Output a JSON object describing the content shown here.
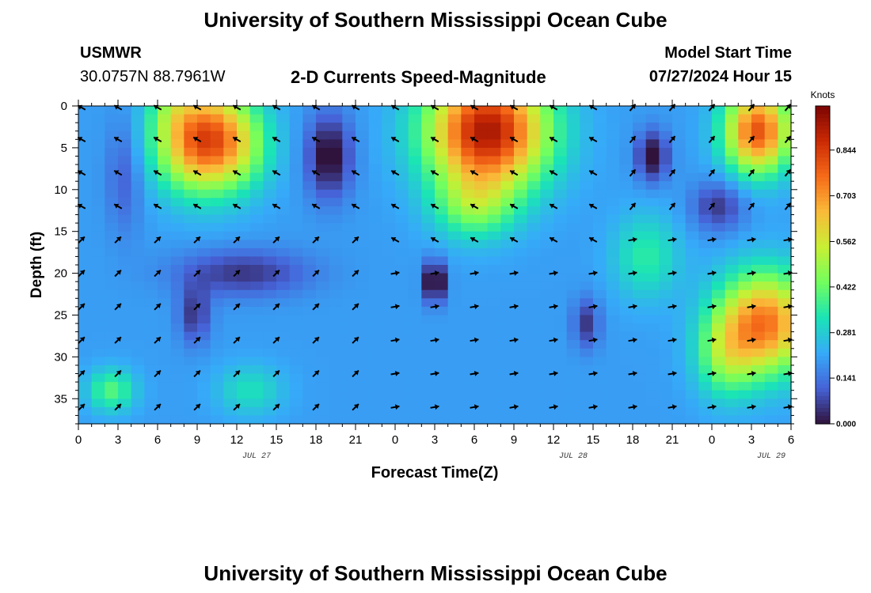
{
  "page": {
    "title": "University of Southern Mississippi Ocean Cube",
    "footer_title": "University of Southern Mississippi Ocean Cube",
    "station_id": "USMWR",
    "station_coords": "30.0757N  88.7961W",
    "chart_heading": "2-D Currents Speed-Magnitude",
    "model_label": "Model Start Time",
    "model_time": "07/27/2024 Hour 15"
  },
  "chart_data": {
    "type": "heatmap",
    "title": "2-D Currents Speed-Magnitude",
    "xlabel": "Forecast Time(Z)",
    "ylabel": "Depth (ft)",
    "x_ticks": [
      "0",
      "3",
      "6",
      "9",
      "12",
      "15",
      "18",
      "21",
      "0",
      "3",
      "6",
      "9",
      "12",
      "15",
      "18",
      "21",
      "0",
      "3",
      "6"
    ],
    "date_labels": [
      {
        "text": "JUL 27",
        "tick_index": 4.5
      },
      {
        "text": "JUL 28",
        "tick_index": 12.5
      },
      {
        "text": "JUL 29",
        "tick_index": 17.5
      }
    ],
    "y_ticks": [
      0,
      5,
      10,
      15,
      20,
      25,
      30,
      35
    ],
    "ylim": [
      0,
      38
    ],
    "xlim_hours": [
      0,
      54
    ],
    "colorbar": {
      "unit": "Knots",
      "ticks": [
        0.0,
        0.141,
        0.281,
        0.422,
        0.562,
        0.703,
        0.844
      ],
      "tick_labels": [
        "0.000",
        "0.141",
        "0.281",
        "0.422",
        "0.562",
        "0.703",
        "0.844"
      ],
      "range": [
        0,
        0.98
      ],
      "colormap": [
        "#30123b",
        "#4662d7",
        "#36aaf9",
        "#1ae4b6",
        "#72fe5e",
        "#c8ef34",
        "#faba39",
        "#f66b19",
        "#cb2a04",
        "#7a0403"
      ]
    },
    "speed_features": [
      {
        "hour": 9.5,
        "depth": 4,
        "sx": 3.5,
        "sy": 6,
        "value": 0.62
      },
      {
        "hour": 12.5,
        "depth": 5,
        "sx": 2.5,
        "sy": 5,
        "value": 0.1
      },
      {
        "hour": 7,
        "depth": 0,
        "sx": 1.5,
        "sy": 3,
        "value": 0.08
      },
      {
        "hour": 19,
        "depth": 6,
        "sx": 1.7,
        "sy": 5,
        "value": -0.22
      },
      {
        "hour": 3.5,
        "depth": 8,
        "sx": 1.4,
        "sy": 7,
        "value": -0.1
      },
      {
        "hour": 31,
        "depth": 3,
        "sx": 4.5,
        "sy": 7,
        "value": 0.72
      },
      {
        "hour": 30,
        "depth": 12,
        "sx": 3,
        "sy": 4,
        "value": 0.2
      },
      {
        "hour": 51.5,
        "depth": 3,
        "sx": 2.5,
        "sy": 5,
        "value": 0.6
      },
      {
        "hour": 52,
        "depth": 26,
        "sx": 3.5,
        "sy": 6,
        "value": 0.55
      },
      {
        "hour": 49,
        "depth": 30,
        "sx": 2.2,
        "sy": 5,
        "value": 0.2
      },
      {
        "hour": 43.5,
        "depth": 6,
        "sx": 1.2,
        "sy": 3,
        "value": -0.22
      },
      {
        "hour": 48.5,
        "depth": 12,
        "sx": 2,
        "sy": 3,
        "value": -0.15
      },
      {
        "hour": 12.5,
        "depth": 20,
        "sx": 5,
        "sy": 2.8,
        "value": -0.15
      },
      {
        "hour": 8.8,
        "depth": 25,
        "sx": 1.2,
        "sy": 3.5,
        "value": -0.15
      },
      {
        "hour": 27,
        "depth": 21,
        "sx": 0.8,
        "sy": 2.5,
        "value": -0.28
      },
      {
        "hour": 38.5,
        "depth": 26,
        "sx": 1,
        "sy": 3,
        "value": -0.15
      },
      {
        "hour": 2.5,
        "depth": 34,
        "sx": 1.8,
        "sy": 2.5,
        "value": 0.2
      },
      {
        "hour": 13,
        "depth": 34,
        "sx": 2.5,
        "sy": 3,
        "value": 0.12
      },
      {
        "hour": 43,
        "depth": 18,
        "sx": 2.5,
        "sy": 5,
        "value": 0.15
      }
    ],
    "speed_base": 0.2,
    "vector_grid": {
      "hours": [
        0,
        3,
        6,
        9,
        12,
        15,
        18,
        21,
        24,
        27,
        30,
        33,
        36,
        39,
        42,
        45,
        48,
        51,
        54
      ],
      "depths": [
        0,
        4,
        8,
        12,
        16,
        20,
        24,
        28,
        32,
        36
      ]
    },
    "vector_flow_regions": [
      {
        "hour_range": [
          0,
          21
        ],
        "depth_range": [
          0,
          14
        ],
        "direction_deg": 300
      },
      {
        "hour_range": [
          24,
          39
        ],
        "depth_range": [
          0,
          16
        ],
        "direction_deg": 300
      },
      {
        "hour_range": [
          0,
          21
        ],
        "depth_range": [
          16,
          38
        ],
        "direction_deg": 45
      },
      {
        "hour_range": [
          24,
          54
        ],
        "depth_range": [
          16,
          38
        ],
        "direction_deg": 80
      },
      {
        "hour_range": [
          42,
          54
        ],
        "depth_range": [
          0,
          16
        ],
        "direction_deg": 40
      }
    ]
  }
}
